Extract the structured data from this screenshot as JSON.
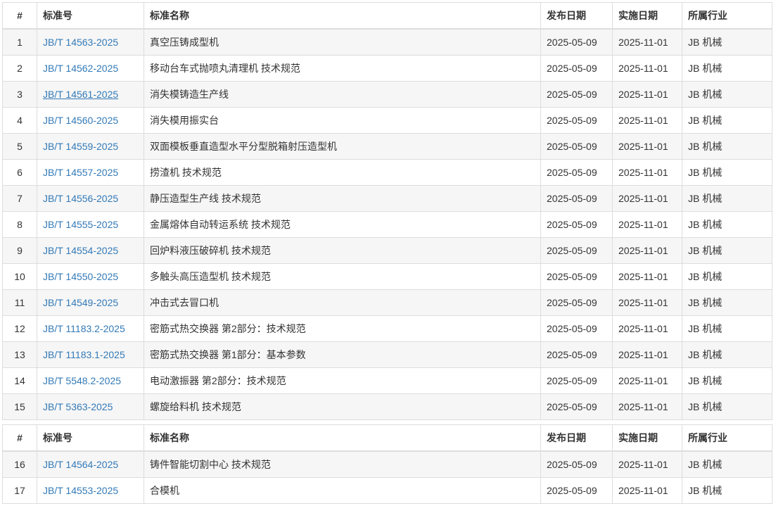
{
  "columns": [
    {
      "key": "index",
      "label": "#"
    },
    {
      "key": "std_no",
      "label": "标准号"
    },
    {
      "key": "name",
      "label": "标准名称"
    },
    {
      "key": "pub_date",
      "label": "发布日期"
    },
    {
      "key": "impl_date",
      "label": "实施日期"
    },
    {
      "key": "industry",
      "label": "所属行业"
    }
  ],
  "colors": {
    "link": "#337ab7",
    "stripe": "#f6f6f6",
    "border": "#dddddd",
    "text": "#333333"
  },
  "tables": [
    {
      "rows": [
        {
          "index": "1",
          "std_no": "JB/T 14563-2025",
          "name": "真空压铸成型机",
          "pub_date": "2025-05-09",
          "impl_date": "2025-11-01",
          "industry": "JB 机械",
          "hover": false
        },
        {
          "index": "2",
          "std_no": "JB/T 14562-2025",
          "name": "移动台车式抛喷丸清理机 技术规范",
          "pub_date": "2025-05-09",
          "impl_date": "2025-11-01",
          "industry": "JB 机械",
          "hover": false
        },
        {
          "index": "3",
          "std_no": "JB/T 14561-2025",
          "name": "消失模铸造生产线",
          "pub_date": "2025-05-09",
          "impl_date": "2025-11-01",
          "industry": "JB 机械",
          "hover": true
        },
        {
          "index": "4",
          "std_no": "JB/T 14560-2025",
          "name": "消失模用振实台",
          "pub_date": "2025-05-09",
          "impl_date": "2025-11-01",
          "industry": "JB 机械",
          "hover": false
        },
        {
          "index": "5",
          "std_no": "JB/T 14559-2025",
          "name": "双面模板垂直造型水平分型脱箱射压造型机",
          "pub_date": "2025-05-09",
          "impl_date": "2025-11-01",
          "industry": "JB 机械",
          "hover": false
        },
        {
          "index": "6",
          "std_no": "JB/T 14557-2025",
          "name": "捞渣机 技术规范",
          "pub_date": "2025-05-09",
          "impl_date": "2025-11-01",
          "industry": "JB 机械",
          "hover": false
        },
        {
          "index": "7",
          "std_no": "JB/T 14556-2025",
          "name": "静压造型生产线 技术规范",
          "pub_date": "2025-05-09",
          "impl_date": "2025-11-01",
          "industry": "JB 机械",
          "hover": false
        },
        {
          "index": "8",
          "std_no": "JB/T 14555-2025",
          "name": "金属熔体自动转运系统 技术规范",
          "pub_date": "2025-05-09",
          "impl_date": "2025-11-01",
          "industry": "JB 机械",
          "hover": false
        },
        {
          "index": "9",
          "std_no": "JB/T 14554-2025",
          "name": "回炉料液压破碎机 技术规范",
          "pub_date": "2025-05-09",
          "impl_date": "2025-11-01",
          "industry": "JB 机械",
          "hover": false
        },
        {
          "index": "10",
          "std_no": "JB/T 14550-2025",
          "name": "多触头高压造型机 技术规范",
          "pub_date": "2025-05-09",
          "impl_date": "2025-11-01",
          "industry": "JB 机械",
          "hover": false
        },
        {
          "index": "11",
          "std_no": "JB/T 14549-2025",
          "name": "冲击式去冒口机",
          "pub_date": "2025-05-09",
          "impl_date": "2025-11-01",
          "industry": "JB 机械",
          "hover": false
        },
        {
          "index": "12",
          "std_no": "JB/T 11183.2-2025",
          "name": "密筋式热交换器 第2部分：技术规范",
          "pub_date": "2025-05-09",
          "impl_date": "2025-11-01",
          "industry": "JB 机械",
          "hover": false
        },
        {
          "index": "13",
          "std_no": "JB/T 11183.1-2025",
          "name": "密筋式热交换器 第1部分：基本参数",
          "pub_date": "2025-05-09",
          "impl_date": "2025-11-01",
          "industry": "JB 机械",
          "hover": false
        },
        {
          "index": "14",
          "std_no": "JB/T 5548.2-2025",
          "name": "电动激振器 第2部分：技术规范",
          "pub_date": "2025-05-09",
          "impl_date": "2025-11-01",
          "industry": "JB 机械",
          "hover": false
        },
        {
          "index": "15",
          "std_no": "JB/T 5363-2025",
          "name": "螺旋给料机 技术规范",
          "pub_date": "2025-05-09",
          "impl_date": "2025-11-01",
          "industry": "JB 机械",
          "hover": false
        }
      ]
    },
    {
      "rows": [
        {
          "index": "16",
          "std_no": "JB/T 14564-2025",
          "name": "铸件智能切割中心 技术规范",
          "pub_date": "2025-05-09",
          "impl_date": "2025-11-01",
          "industry": "JB 机械",
          "hover": false
        },
        {
          "index": "17",
          "std_no": "JB/T 14553-2025",
          "name": "合模机",
          "pub_date": "2025-05-09",
          "impl_date": "2025-11-01",
          "industry": "JB 机械",
          "hover": false
        }
      ]
    }
  ]
}
